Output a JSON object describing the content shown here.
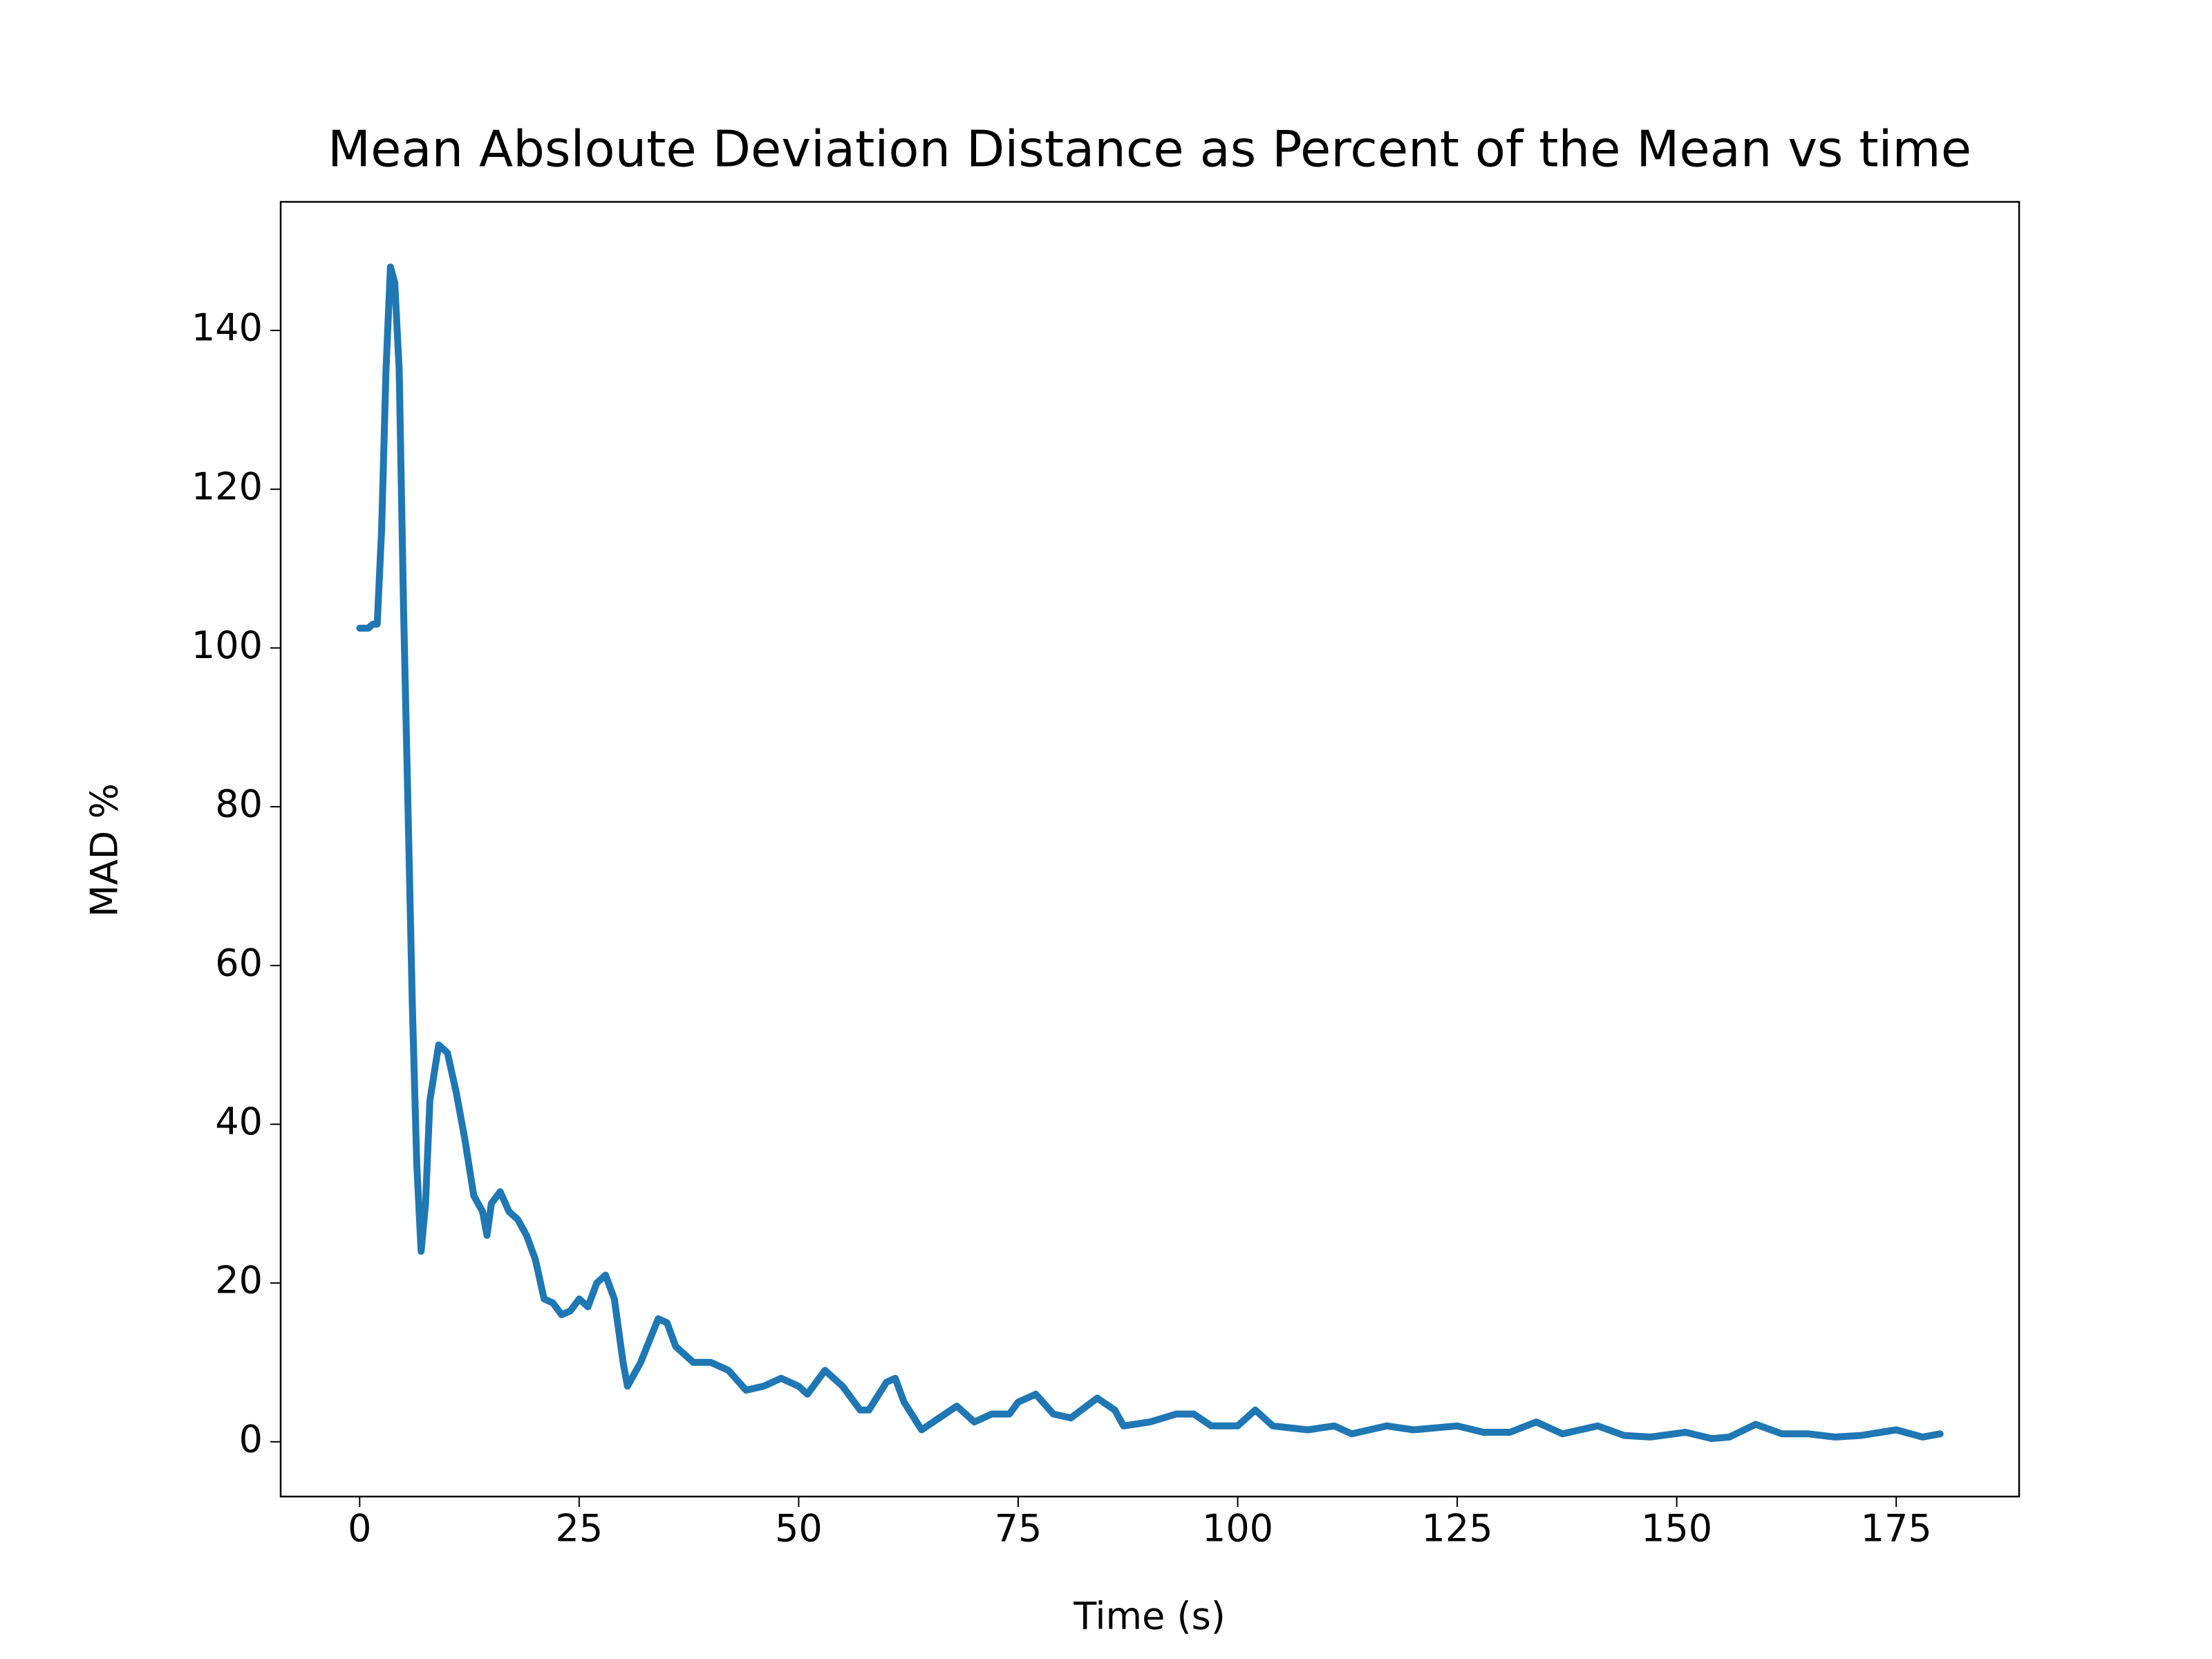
{
  "chart_data": {
    "type": "line",
    "title": "Mean Absloute Deviation Distance as Percent of the Mean vs time",
    "x_label": "Time (s)",
    "y_label": "MAD %",
    "x": [
      0,
      1,
      1.5,
      2,
      2.5,
      3,
      3.5,
      4,
      4.5,
      5,
      5.5,
      6,
      6.5,
      7,
      7.5,
      8,
      9,
      10,
      11,
      12,
      13,
      14,
      14.5,
      15,
      16,
      17,
      18,
      19,
      20,
      21,
      22,
      23,
      24,
      25,
      26,
      27,
      28,
      29,
      30,
      30.5,
      32,
      34,
      35,
      36,
      38,
      40,
      42,
      44,
      46,
      48,
      50,
      51,
      53,
      55,
      57,
      58,
      60,
      61,
      62,
      64,
      66,
      68,
      70,
      72,
      74,
      75,
      77,
      79,
      81,
      84,
      86,
      87,
      90,
      93,
      95,
      97,
      100,
      102,
      104,
      108,
      111,
      113,
      117,
      120,
      125,
      128,
      131,
      134,
      137,
      141,
      144,
      147,
      151,
      154,
      156,
      159,
      162,
      165,
      168,
      171,
      175,
      178,
      180
    ],
    "series": [
      {
        "name": "MAD %",
        "color": "#1f77b4",
        "values": [
          102.5,
          102.5,
          103,
          103,
          115,
          135,
          148,
          146,
          135,
          105,
          80,
          55,
          35,
          24,
          30,
          43,
          50,
          49,
          44,
          38,
          31,
          29,
          26,
          30,
          31.5,
          29,
          28,
          26,
          23,
          18,
          17.5,
          16,
          16.5,
          18,
          17,
          20,
          21,
          18,
          10,
          7,
          10,
          15.5,
          15,
          12,
          10,
          10,
          9,
          6.5,
          7,
          8,
          7,
          6,
          9,
          7,
          4,
          4,
          7.5,
          8,
          5,
          1.5,
          3,
          4.5,
          2.5,
          3.5,
          3.5,
          5,
          6,
          3.5,
          3,
          5.5,
          4,
          2,
          2.5,
          3.5,
          3.5,
          2,
          2,
          4,
          2,
          1.5,
          2,
          1,
          2,
          1.5,
          2,
          1.2,
          1.2,
          2.5,
          1,
          2,
          0.8,
          0.6,
          1.2,
          0.4,
          0.6,
          2.2,
          1,
          1,
          0.6,
          0.8,
          1.5,
          0.6,
          1
        ]
      }
    ],
    "xlim": [
      -9,
      189
    ],
    "ylim": [
      -6.9,
      156.2
    ],
    "xticks": [
      0,
      25,
      50,
      75,
      100,
      125,
      150,
      175
    ],
    "yticks": [
      0,
      20,
      40,
      60,
      80,
      100,
      120,
      140
    ]
  }
}
